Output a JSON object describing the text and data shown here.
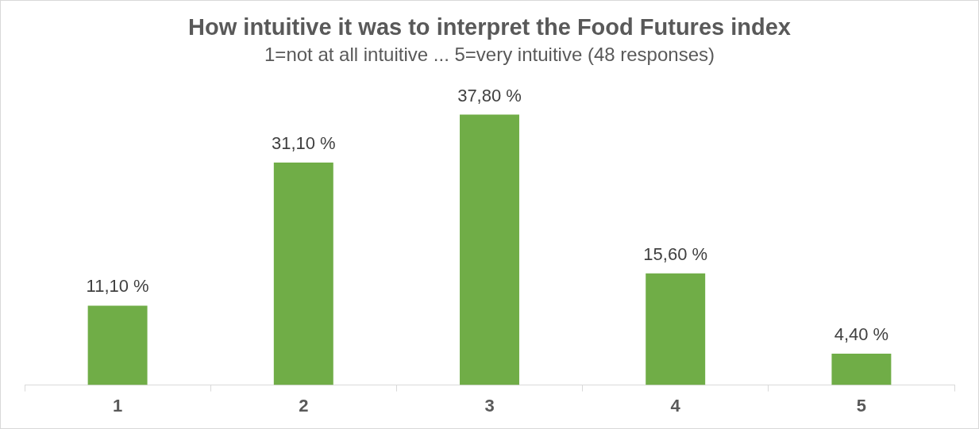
{
  "chart_data": {
    "type": "bar",
    "title": "How intuitive it was to interpret the Food Futures index",
    "subtitle": "1=not at all intuitive ... 5=very intuitive (48 responses)",
    "categories": [
      "1",
      "2",
      "3",
      "4",
      "5"
    ],
    "values": [
      11.1,
      31.1,
      37.8,
      15.6,
      4.4
    ],
    "value_labels": [
      "11,10 %",
      "31,10 %",
      "37,80 %",
      "15,60 %",
      "4,40 %"
    ],
    "color": "#70ad47",
    "grid": false,
    "legend": false
  }
}
